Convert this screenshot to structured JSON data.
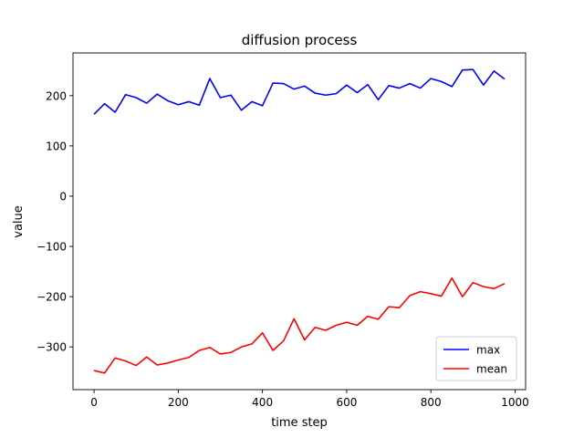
{
  "chart_data": {
    "type": "line",
    "title": "diffusion process",
    "xlabel": "time step",
    "ylabel": "value",
    "xlim": [
      -50,
      1025
    ],
    "ylim": [
      -385,
      285
    ],
    "xticks": [
      0,
      200,
      400,
      600,
      800,
      1000
    ],
    "yticks": [
      -300,
      -200,
      -100,
      0,
      100,
      200
    ],
    "xtick_labels": [
      "0",
      "200",
      "400",
      "600",
      "800",
      "1000"
    ],
    "ytick_labels": [
      "−300",
      "−200",
      "−100",
      "0",
      "100",
      "200"
    ],
    "grid": false,
    "legend_position": "lower-right",
    "x": [
      0,
      25,
      50,
      75,
      100,
      125,
      150,
      175,
      200,
      225,
      250,
      275,
      300,
      325,
      350,
      375,
      400,
      425,
      450,
      475,
      500,
      525,
      550,
      575,
      600,
      625,
      650,
      675,
      700,
      725,
      750,
      775,
      800,
      825,
      850,
      875,
      900,
      925,
      950,
      975
    ],
    "series": [
      {
        "name": "max",
        "color": "#0000ff",
        "values": [
          163,
          184,
          167,
          202,
          196,
          185,
          203,
          190,
          182,
          188,
          181,
          234,
          196,
          201,
          171,
          188,
          180,
          225,
          224,
          213,
          219,
          205,
          201,
          204,
          221,
          206,
          222,
          192,
          220,
          215,
          224,
          215,
          234,
          228,
          218,
          251,
          252,
          221,
          249,
          233
        ]
      },
      {
        "name": "mean",
        "color": "#ff0000",
        "values": [
          -347,
          -352,
          -322,
          -328,
          -337,
          -320,
          -336,
          -332,
          -326,
          -321,
          -307,
          -301,
          -314,
          -311,
          -300,
          -294,
          -272,
          -307,
          -288,
          -244,
          -286,
          -261,
          -267,
          -257,
          -251,
          -257,
          -239,
          -245,
          -220,
          -222,
          -198,
          -190,
          -194,
          -199,
          -163,
          -200,
          -172,
          -180,
          -184,
          -174
        ]
      }
    ]
  }
}
